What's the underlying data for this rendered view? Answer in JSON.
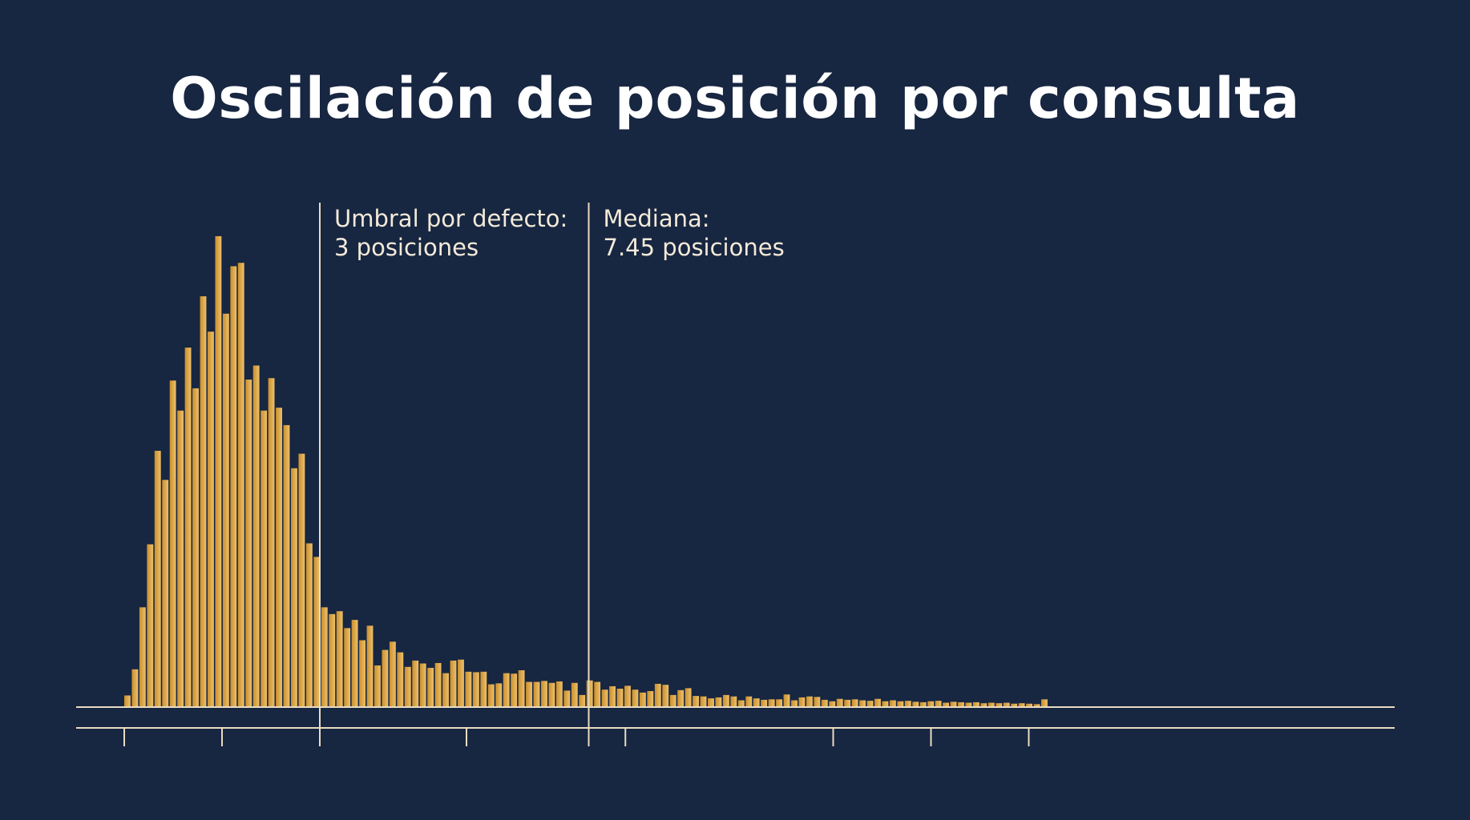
{
  "chart_data": {
    "type": "bar",
    "title": "Oscilación de posición por consulta",
    "xlabel": "",
    "ylabel": "",
    "xlim": [
      0,
      25
    ],
    "ylim": [
      0,
      100
    ],
    "tick_values": [
      0,
      2,
      4,
      7,
      9.5,
      10.25,
      14.5,
      16.5,
      18.5
    ],
    "bar_width": 0.155,
    "values": [
      2.4,
      7.8,
      20.6,
      33.6,
      52.9,
      46.9,
      67.4,
      61.2,
      74.2,
      65.8,
      84.8,
      77.5,
      97.2,
      81.2,
      91.0,
      91.7,
      67.6,
      70.5,
      61.2,
      67.9,
      61.8,
      58.2,
      49.3,
      52.3,
      33.8,
      31.0,
      20.6,
      19.2,
      19.8,
      16.3,
      18.0,
      13.8,
      16.8,
      8.6,
      11.8,
      13.5,
      11.3,
      8.3,
      9.6,
      9.0,
      8.1,
      9.1,
      7.0,
      9.6,
      9.8,
      7.3,
      7.2,
      7.3,
      4.7,
      4.9,
      7.0,
      6.9,
      7.6,
      5.2,
      5.2,
      5.4,
      5.0,
      5.3,
      3.4,
      5.0,
      2.5,
      5.5,
      5.2,
      3.6,
      4.3,
      3.8,
      4.4,
      3.6,
      3.0,
      3.3,
      4.8,
      4.6,
      2.5,
      3.5,
      3.9,
      2.3,
      2.2,
      1.8,
      2.0,
      2.5,
      2.2,
      1.4,
      2.2,
      1.8,
      1.5,
      1.6,
      1.6,
      2.6,
      1.4,
      2.0,
      2.2,
      2.1,
      1.5,
      1.2,
      1.7,
      1.5,
      1.6,
      1.4,
      1.3,
      1.7,
      1.2,
      1.4,
      1.2,
      1.3,
      1.1,
      1.0,
      1.2,
      1.3,
      0.9,
      1.1,
      1.0,
      0.9,
      1.0,
      0.8,
      0.9,
      0.8,
      0.9,
      0.7,
      0.8,
      0.7,
      0.6,
      1.6
    ],
    "annotations": [
      {
        "x": 4,
        "line1": "Umbral por defecto:",
        "line2": "3 posiciones"
      },
      {
        "x": 9.5,
        "line1": "Mediana:",
        "line2": "7.45 posiciones"
      }
    ],
    "grid": false,
    "legend": "none"
  },
  "colors": {
    "background": "#172641",
    "bar_light": "#eec06a",
    "bar_dark": "#c98f2e",
    "axis": "#e9dcc0",
    "text": "#ffffff"
  }
}
